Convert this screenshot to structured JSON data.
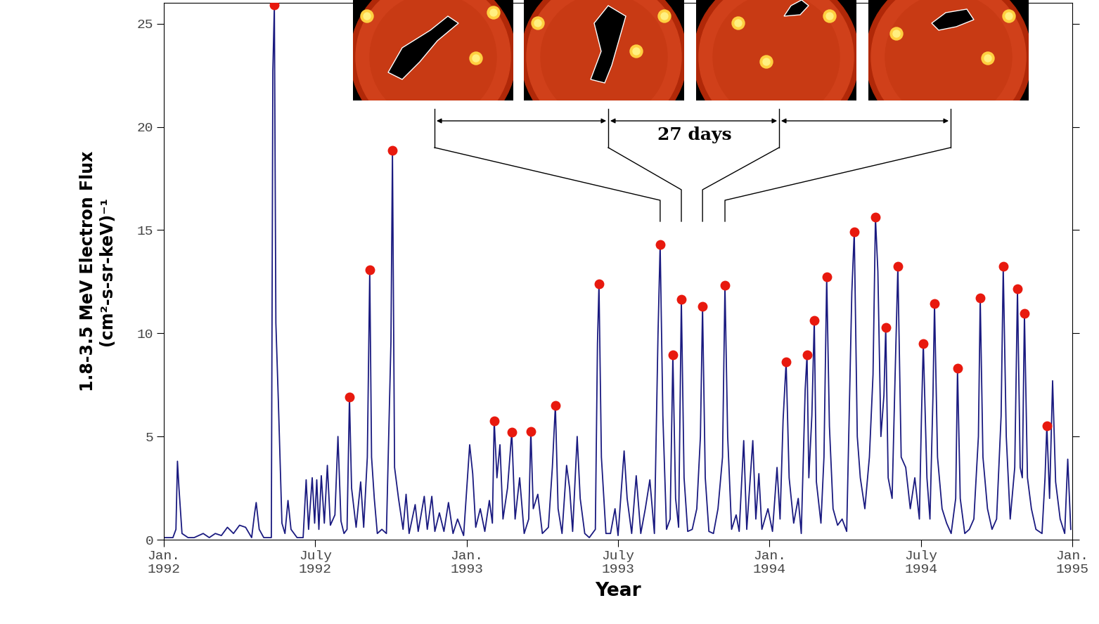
{
  "chart_data": {
    "type": "line",
    "x_label": "Year",
    "y_label": "1.8-3.5 MeV Electron Flux\n(cm²-s-sr-keV)⁻¹",
    "xlim": [
      1992.0,
      1995.0
    ],
    "xticks": [
      {
        "value": 1992.0,
        "label": "Jan.\n1992"
      },
      {
        "value": 1992.5,
        "label": "July\n1992"
      },
      {
        "value": 1993.0,
        "label": "Jan.\n1993"
      },
      {
        "value": 1993.5,
        "label": "July\n1993"
      },
      {
        "value": 1994.0,
        "label": "Jan.\n1994"
      },
      {
        "value": 1994.5,
        "label": "July\n1994"
      },
      {
        "value": 1995.0,
        "label": "Jan.\n1995"
      }
    ],
    "ylim": [
      0,
      26
    ],
    "yticks": [
      0,
      5,
      10,
      15,
      20,
      25
    ],
    "grid": false,
    "series": [
      {
        "type": "line",
        "color": "#1a1a80",
        "line_style": "solid",
        "x": [
          1992.0,
          1992.03,
          1992.04,
          1992.045,
          1992.05,
          1992.06,
          1992.08,
          1992.1,
          1992.13,
          1992.15,
          1992.17,
          1992.19,
          1992.21,
          1992.23,
          1992.25,
          1992.27,
          1992.29,
          1992.3,
          1992.305,
          1992.315,
          1992.33,
          1992.355,
          1992.36,
          1992.365,
          1992.37,
          1992.378,
          1992.39,
          1992.4,
          1992.41,
          1992.42,
          1992.44,
          1992.46,
          1992.47,
          1992.478,
          1992.49,
          1992.498,
          1992.505,
          1992.512,
          1992.52,
          1992.53,
          1992.54,
          1992.55,
          1992.565,
          1992.575,
          1992.585,
          1992.595,
          1992.605,
          1992.613,
          1992.62,
          1992.635,
          1992.65,
          1992.66,
          1992.672,
          1992.68,
          1992.686,
          1992.695,
          1992.705,
          1992.72,
          1992.735,
          1992.75,
          1992.755,
          1992.762,
          1992.775,
          1992.79,
          1992.8,
          1992.81,
          1992.83,
          1992.84,
          1992.86,
          1992.87,
          1992.885,
          1992.895,
          1992.91,
          1992.925,
          1992.94,
          1992.955,
          1992.97,
          1992.99,
          1993.01,
          1993.02,
          1993.03,
          1993.045,
          1993.06,
          1993.075,
          1993.085,
          1993.091,
          1993.1,
          1993.11,
          1993.12,
          1993.135,
          1993.149,
          1993.16,
          1993.175,
          1993.19,
          1993.205,
          1993.212,
          1993.22,
          1993.235,
          1993.25,
          1993.27,
          1993.283,
          1993.293,
          1993.302,
          1993.315,
          1993.33,
          1993.34,
          1993.35,
          1993.365,
          1993.375,
          1993.39,
          1993.405,
          1993.425,
          1993.432,
          1993.437,
          1993.445,
          1993.46,
          1993.475,
          1993.49,
          1993.5,
          1993.52,
          1993.53,
          1993.545,
          1993.56,
          1993.575,
          1993.59,
          1993.605,
          1993.62,
          1993.632,
          1993.639,
          1993.648,
          1993.66,
          1993.672,
          1993.681,
          1993.69,
          1993.7,
          1993.709,
          1993.718,
          1993.73,
          1993.745,
          1993.76,
          1993.772,
          1993.779,
          1993.788,
          1993.8,
          1993.815,
          1993.83,
          1993.845,
          1993.853,
          1993.862,
          1993.875,
          1993.89,
          1993.9,
          1993.915,
          1993.925,
          1993.945,
          1993.955,
          1993.965,
          1993.975,
          1993.995,
          1994.01,
          1994.025,
          1994.035,
          1994.045,
          1994.055,
          1994.065,
          1994.08,
          1994.095,
          1994.105,
          1994.118,
          1994.124,
          1994.13,
          1994.14,
          1994.148,
          1994.155,
          1994.17,
          1994.18,
          1994.189,
          1994.198,
          1994.21,
          1994.225,
          1994.24,
          1994.255,
          1994.272,
          1994.28,
          1994.29,
          1994.3,
          1994.315,
          1994.33,
          1994.342,
          1994.35,
          1994.358,
          1994.368,
          1994.378,
          1994.384,
          1994.392,
          1994.405,
          1994.415,
          1994.424,
          1994.435,
          1994.45,
          1994.465,
          1994.48,
          1994.495,
          1994.502,
          1994.508,
          1994.52,
          1994.53,
          1994.54,
          1994.545,
          1994.555,
          1994.57,
          1994.585,
          1994.6,
          1994.615,
          1994.621,
          1994.63,
          1994.645,
          1994.66,
          1994.675,
          1994.69,
          1994.696,
          1994.705,
          1994.72,
          1994.735,
          1994.75,
          1994.765,
          1994.772,
          1994.782,
          1994.795,
          1994.81,
          1994.819,
          1994.828,
          1994.835,
          1994.842,
          1994.852,
          1994.865,
          1994.88,
          1994.9,
          1994.91,
          1994.916,
          1994.925,
          1994.935,
          1994.945,
          1994.96,
          1994.975,
          1994.985,
          1994.995
        ],
        "values": [
          0.1,
          0.1,
          0.5,
          3.8,
          2.5,
          0.3,
          0.1,
          0.1,
          0.3,
          0.1,
          0.3,
          0.2,
          0.6,
          0.3,
          0.7,
          0.6,
          0.1,
          1.3,
          1.8,
          0.5,
          0.1,
          0.1,
          22.7,
          25.9,
          10.5,
          6.8,
          0.8,
          0.3,
          1.9,
          0.5,
          0.1,
          0.1,
          2.9,
          0.5,
          3.0,
          0.8,
          2.9,
          0.5,
          3.1,
          0.8,
          3.6,
          0.7,
          1.2,
          5.0,
          0.9,
          0.3,
          0.5,
          6.92,
          2.5,
          0.6,
          2.8,
          0.6,
          4.0,
          13.06,
          4.0,
          2.0,
          0.3,
          0.5,
          0.3,
          9.6,
          18.86,
          3.5,
          2.0,
          0.5,
          2.2,
          0.3,
          1.7,
          0.4,
          2.1,
          0.5,
          2.1,
          0.4,
          1.3,
          0.4,
          1.8,
          0.3,
          1.0,
          0.2,
          4.6,
          3.2,
          0.6,
          1.5,
          0.4,
          1.9,
          0.8,
          5.77,
          3.0,
          4.6,
          1.0,
          2.5,
          5.2,
          1.0,
          3.0,
          0.3,
          1.0,
          5.26,
          1.5,
          2.2,
          0.3,
          0.6,
          3.5,
          6.51,
          1.5,
          0.3,
          3.6,
          2.5,
          0.4,
          5.0,
          2.0,
          0.3,
          0.1,
          0.5,
          9.5,
          12.38,
          4.0,
          0.3,
          0.3,
          1.5,
          0.2,
          4.3,
          2.0,
          0.3,
          3.1,
          0.3,
          1.5,
          2.9,
          0.3,
          10.0,
          14.31,
          6.0,
          0.5,
          1.0,
          8.94,
          2.0,
          0.6,
          11.64,
          3.0,
          0.4,
          0.5,
          1.5,
          5.0,
          11.3,
          3.0,
          0.4,
          0.3,
          1.5,
          4.0,
          12.31,
          5.0,
          0.5,
          1.2,
          0.4,
          4.8,
          0.5,
          4.8,
          1.0,
          3.2,
          0.5,
          1.5,
          0.4,
          3.5,
          1.0,
          5.8,
          8.6,
          3.0,
          0.8,
          2.0,
          0.3,
          7.3,
          8.94,
          3.0,
          6.0,
          10.63,
          2.8,
          0.8,
          4.0,
          12.72,
          5.5,
          1.5,
          0.7,
          1.0,
          0.4,
          12.0,
          14.91,
          5.0,
          3.0,
          1.5,
          4.0,
          8.0,
          15.62,
          13.0,
          5.0,
          7.0,
          10.29,
          3.0,
          2.0,
          8.0,
          13.23,
          4.0,
          3.5,
          1.5,
          3.0,
          1.0,
          6.0,
          9.51,
          3.0,
          1.0,
          7.0,
          11.44,
          4.0,
          1.5,
          0.8,
          0.3,
          2.0,
          8.3,
          2.0,
          0.3,
          0.5,
          1.0,
          5.0,
          11.71,
          4.0,
          1.5,
          0.5,
          1.0,
          6.0,
          13.23,
          5.0,
          1.0,
          3.5,
          12.15,
          3.5,
          3.0,
          10.96,
          3.0,
          1.5,
          0.5,
          0.3,
          3.0,
          5.53,
          2.0,
          7.7,
          2.8,
          1.0,
          0.3,
          3.9,
          0.5
        ]
      },
      {
        "type": "scatter",
        "color": "#e8190e",
        "marker": "o",
        "x": [
          1992.365,
          1992.613,
          1992.68,
          1992.755,
          1993.091,
          1993.149,
          1993.212,
          1993.293,
          1993.437,
          1993.639,
          1993.681,
          1993.709,
          1993.779,
          1993.853,
          1994.055,
          1994.124,
          1994.148,
          1994.189,
          1994.28,
          1994.35,
          1994.384,
          1994.424,
          1994.508,
          1994.545,
          1994.621,
          1994.696,
          1994.772,
          1994.819,
          1994.842,
          1994.916
        ],
        "values": [
          25.9,
          6.92,
          13.06,
          18.86,
          5.77,
          5.2,
          5.26,
          6.51,
          12.38,
          14.31,
          8.94,
          11.64,
          11.3,
          12.31,
          8.6,
          8.94,
          10.63,
          12.72,
          14.91,
          15.62,
          10.29,
          13.23,
          9.51,
          11.44,
          8.3,
          11.71,
          13.23,
          12.15,
          10.96,
          5.53
        ]
      }
    ],
    "annotation": {
      "text": "27 days",
      "x": [
        1993.639,
        1993.709,
        1993.779,
        1993.853
      ]
    }
  }
}
